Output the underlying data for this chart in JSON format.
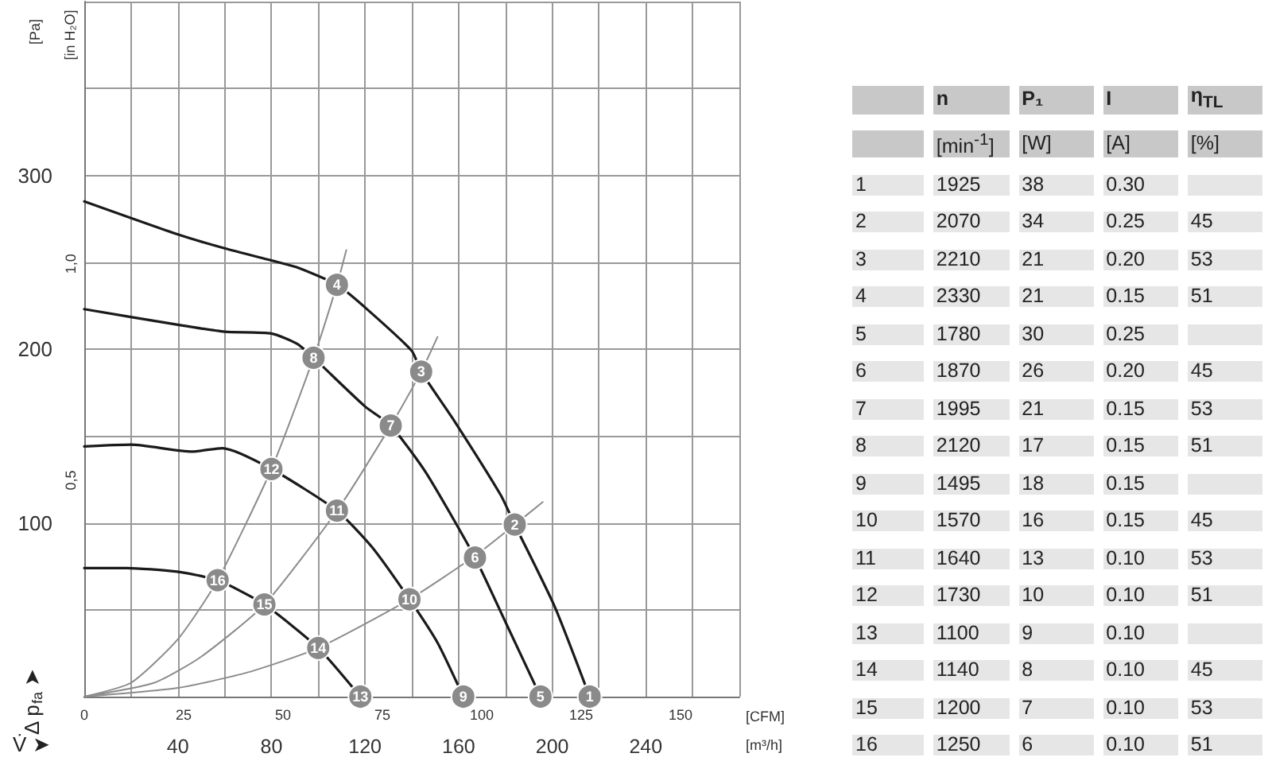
{
  "chart_data": [
    {
      "type": "line",
      "grid": true,
      "xlabel": "[m³/h]",
      "x2label": "[CFM]",
      "ylabel": "[Pa]",
      "y2label": "[in H₂O]",
      "annotations": [
        "Δ p$_{fa}$ ➤",
        "V̇ ➤",
        {
          "text": "1",
          "x": 216,
          "y": 0
        },
        {
          "text": "2",
          "x": 184,
          "y": 99
        },
        {
          "text": "3",
          "x": 144,
          "y": 187
        },
        {
          "text": "4",
          "x": 108,
          "y": 237
        },
        {
          "text": "5",
          "x": 195,
          "y": 0
        },
        {
          "text": "6",
          "x": 167,
          "y": 80
        },
        {
          "text": "7",
          "x": 131,
          "y": 156
        },
        {
          "text": "8",
          "x": 98,
          "y": 195
        },
        {
          "text": "9",
          "x": 162,
          "y": 0
        },
        {
          "text": "10",
          "x": 139,
          "y": 56
        },
        {
          "text": "11",
          "x": 108,
          "y": 107
        },
        {
          "text": "12",
          "x": 80,
          "y": 131
        },
        {
          "text": "13",
          "x": 118,
          "y": 0
        },
        {
          "text": "14",
          "x": 100,
          "y": 28
        },
        {
          "text": "15",
          "x": 77,
          "y": 53
        },
        {
          "text": "16",
          "x": 57,
          "y": 67
        }
      ],
      "xlim": [
        0,
        280
      ],
      "xticks": [
        {
          "value": 0,
          "label": null
        },
        {
          "value": 20,
          "label": null
        },
        40,
        {
          "value": 60,
          "label": null
        },
        80,
        {
          "value": 100,
          "label": null
        },
        120,
        {
          "value": 140,
          "label": null
        },
        160,
        {
          "value": 180,
          "label": null
        },
        200,
        {
          "value": 220,
          "label": null
        },
        240,
        {
          "value": 260,
          "label": null
        },
        {
          "value": 280,
          "label": null
        }
      ],
      "x2lim": [
        0,
        164.8
      ],
      "x2ticks": [
        0,
        25,
        50,
        75,
        100,
        125,
        150
      ],
      "ylim": [
        0,
        400
      ],
      "yticks": [
        {
          "value": 0,
          "label": null
        },
        {
          "value": 50,
          "label": null
        },
        100,
        {
          "value": 150,
          "label": null
        },
        200,
        {
          "value": 250,
          "label": null
        },
        300,
        {
          "value": 350,
          "label": null
        },
        {
          "value": 400,
          "label": null
        }
      ],
      "y2lim": [
        0,
        1.606
      ],
      "y2ticks": [
        {
          "value": 0.5,
          "label": "0,5"
        },
        {
          "value": 1.0,
          "label": "1,0"
        }
      ],
      "series": [
        {
          "color": "#1a1a1a",
          "x": [
            0,
            40,
            60,
            80,
            91,
            108,
            120,
            140,
            144,
            158,
            178,
            184,
            201,
            216
          ],
          "values": [
            285,
            266,
            258,
            251,
            247,
            237,
            224,
            199,
            187,
            159,
            116,
            99,
            52,
            0
          ]
        },
        {
          "color": "#1a1a1a",
          "x": [
            0,
            40,
            60,
            80,
            91,
            98,
            120,
            131,
            146,
            167,
            180,
            195
          ],
          "values": [
            223,
            214,
            210,
            209,
            203,
            195,
            167,
            156,
            129,
            80,
            43,
            0
          ]
        },
        {
          "color": "#1a1a1a",
          "x": [
            0,
            20,
            46,
            59,
            80,
            108,
            123,
            139,
            151,
            162
          ],
          "values": [
            144,
            145,
            141,
            143,
            131,
            107,
            86,
            56,
            31,
            0
          ]
        },
        {
          "color": "#1a1a1a",
          "x": [
            0,
            18,
            39,
            57,
            77,
            100,
            118
          ],
          "values": [
            74,
            74,
            72,
            67,
            53,
            28,
            0
          ]
        },
        {
          "color": "#8c8c8c",
          "x": [
            0,
            20,
            40,
            57,
            80,
            98,
            108,
            112
          ],
          "values": [
            0,
            8,
            33,
            67,
            131,
            195,
            237,
            257
          ]
        },
        {
          "color": "#8c8c8c",
          "x": [
            0,
            30,
            50,
            77,
            108,
            131,
            144,
            151
          ],
          "values": [
            0,
            8,
            23,
            53,
            107,
            156,
            187,
            207
          ]
        },
        {
          "color": "#8c8c8c",
          "x": [
            0,
            40,
            70,
            100,
            139,
            167,
            184,
            196
          ],
          "values": [
            0,
            5,
            14,
            28,
            56,
            81,
            99,
            112
          ]
        }
      ]
    },
    {
      "type": "other",
      "annotations": [
        null,
        "n",
        "P₁",
        "I",
        "η$_{TL}$",
        null,
        "[min$^{-1}$]",
        "[W]",
        "[A]",
        "[%]",
        "1",
        "1925",
        "38",
        "0.30",
        null,
        "2",
        "2070",
        "34",
        "0.25",
        "45",
        "3",
        "2210",
        "21",
        "0.20",
        "53",
        "4",
        "2330",
        "21",
        "0.15",
        "51",
        "5",
        "1780",
        "30",
        "0.25",
        null,
        "6",
        "1870",
        "26",
        "0.20",
        "45",
        "7",
        "1995",
        "21",
        "0.15",
        "53",
        "8",
        "2120",
        "17",
        "0.15",
        "51",
        "9",
        "1495",
        "18",
        "0.15",
        null,
        "10",
        "1570",
        "16",
        "0.15",
        "45",
        "11",
        "1640",
        "13",
        "0.10",
        "53",
        "12",
        "1730",
        "10",
        "0.10",
        "51",
        "13",
        "1100",
        "9",
        "0.10",
        null,
        "14",
        "1140",
        "8",
        "0.10",
        "45",
        "15",
        "1200",
        "7",
        "0.10",
        "53",
        "16",
        "1250",
        "6",
        "0.10",
        "51"
      ]
    }
  ]
}
